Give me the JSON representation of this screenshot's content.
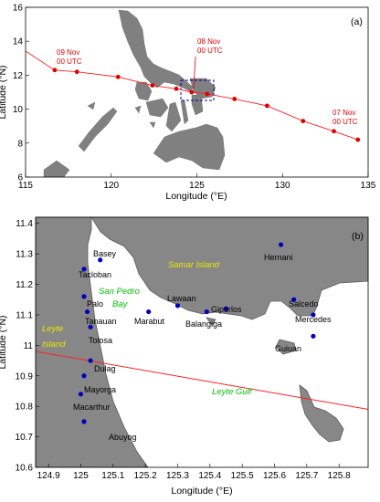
{
  "panel_a": {
    "tag": "(a)",
    "xlabel": "Longitude (°E)",
    "ylabel": "Latitude (°N)",
    "xticks": [
      "115",
      "120",
      "125",
      "130",
      "135"
    ],
    "yticks": [
      "16",
      "14",
      "12",
      "10",
      "8",
      "6"
    ],
    "labels": {
      "nov09": {
        "l1": "09 Nov",
        "l2": "00 UTC"
      },
      "nov08": {
        "l1": "08 Nov",
        "l2": "00 UTC"
      },
      "nov07": {
        "l1": "07 Nov",
        "l2": "00 UTC"
      }
    }
  },
  "panel_b": {
    "tag": "(b)",
    "xlabel": "Longitude (°E)",
    "ylabel": "Latitude (°N)",
    "xticks": [
      "124.9",
      "125",
      "125.1",
      "125.2",
      "125.3",
      "125.4",
      "125.5",
      "125.6",
      "125.7",
      "125.8"
    ],
    "yticks": [
      "11.4",
      "11.3",
      "11.2",
      "11.1",
      "11",
      "10.9",
      "10.8",
      "10.7",
      "10.6"
    ],
    "places": {
      "basey": "Basey",
      "tacloban": "Tacloban",
      "palo": "Palo",
      "tanauan": "Tanauan",
      "tolosa": "Tolosa",
      "dulag": "Dulag",
      "mayorga": "Mayorga",
      "macarthur": "Macarthur",
      "abuyog": "Abuyog",
      "marabut": "Marabut",
      "lawaan": "Lawaan",
      "balangiga": "Balangiga",
      "giporlos": "Giporlos",
      "hernani": "Hernani",
      "salcedo": "Salcedo",
      "mercedes": "Mercedes",
      "guiuan": "Guiuan"
    },
    "waters": {
      "sanpedro1": "San Pedro",
      "sanpedro2": "Bay",
      "gulf": "Leyte Gulf"
    },
    "islands": {
      "samar": "Samar Island",
      "leyte1": "Leyte",
      "leyte2": "Island"
    }
  },
  "map_data": {
    "track_panel_a": [
      {
        "lon": 134.4,
        "lat": 8.2
      },
      {
        "lon": 133.0,
        "lat": 8.7
      },
      {
        "lon": 131.2,
        "lat": 9.3
      },
      {
        "lon": 129.1,
        "lat": 10.2
      },
      {
        "lon": 127.2,
        "lat": 10.6
      },
      {
        "lon": 125.6,
        "lat": 10.9
      },
      {
        "lon": 124.7,
        "lat": 11.0
      },
      {
        "lon": 123.8,
        "lat": 11.2
      },
      {
        "lon": 122.4,
        "lat": 11.4
      },
      {
        "lon": 120.4,
        "lat": 11.9
      },
      {
        "lon": 118.0,
        "lat": 12.2
      },
      {
        "lon": 116.7,
        "lat": 12.3
      }
    ],
    "track_line_panel_b": [
      {
        "lon": 124.86,
        "lat": 10.98
      },
      {
        "lon": 125.89,
        "lat": 10.79
      }
    ],
    "stations_panel_b": [
      {
        "name": "Basey",
        "lon": 125.06,
        "lat": 11.28
      },
      {
        "name": "Tacloban",
        "lon": 125.01,
        "lat": 11.25
      },
      {
        "name": "Palo",
        "lon": 125.01,
        "lat": 11.16
      },
      {
        "name": "Tanauan",
        "lon": 125.02,
        "lat": 11.11
      },
      {
        "name": "Tolosa",
        "lon": 125.03,
        "lat": 11.06
      },
      {
        "name": "Dulag",
        "lon": 125.03,
        "lat": 10.95
      },
      {
        "name": "Mayorga",
        "lon": 125.01,
        "lat": 10.9
      },
      {
        "name": "Macarthur",
        "lon": 125.0,
        "lat": 10.84
      },
      {
        "name": "Abuyog",
        "lon": 125.01,
        "lat": 10.75
      },
      {
        "name": "Marabut",
        "lon": 125.21,
        "lat": 11.11
      },
      {
        "name": "Lawaan",
        "lon": 125.3,
        "lat": 11.13
      },
      {
        "name": "Balangiga",
        "lon": 125.39,
        "lat": 11.11
      },
      {
        "name": "Giporlos",
        "lon": 125.45,
        "lat": 11.12
      },
      {
        "name": "Hernani",
        "lon": 125.62,
        "lat": 11.33
      },
      {
        "name": "Salcedo",
        "lon": 125.66,
        "lat": 11.15
      },
      {
        "name": "Mercedes",
        "lon": 125.72,
        "lat": 11.1
      },
      {
        "name": "Guiuan",
        "lon": 125.72,
        "lat": 11.03
      }
    ],
    "colors": {
      "land": "#808080",
      "track": "#ff2020",
      "track_point": "#e00000",
      "station": "#0000c0",
      "border": "#000000"
    }
  }
}
